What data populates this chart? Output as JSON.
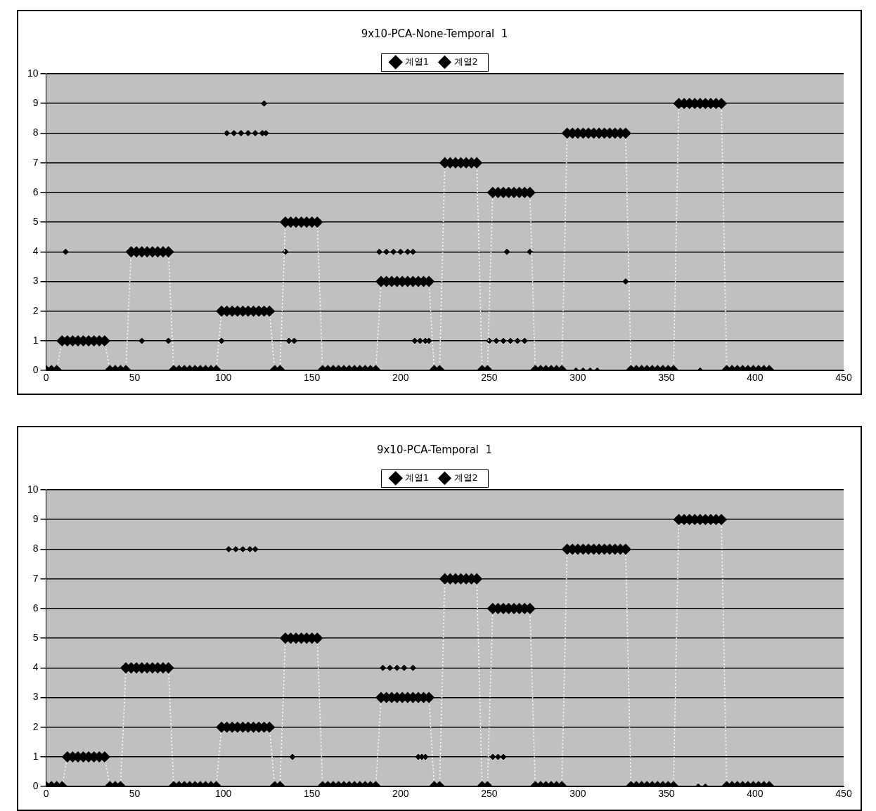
{
  "chart_data": [
    {
      "type": "line",
      "title": "9x10-PCA-None-Temporal  1",
      "x": [
        0,
        3,
        6,
        9,
        12,
        15,
        18,
        21,
        24,
        27,
        30,
        33,
        36,
        39,
        42,
        45,
        48,
        51,
        54,
        57,
        60,
        63,
        66,
        69,
        72,
        75,
        78,
        81,
        84,
        87,
        90,
        93,
        96,
        99,
        102,
        105,
        108,
        111,
        114,
        117,
        120,
        123,
        126,
        129,
        132,
        135,
        138,
        141,
        144,
        147,
        150,
        153,
        156,
        159,
        162,
        165,
        168,
        171,
        174,
        177,
        180,
        183,
        186,
        189,
        192,
        195,
        198,
        201,
        204,
        207,
        210,
        213,
        216,
        219,
        222,
        225,
        228,
        231,
        234,
        237,
        240,
        243,
        246,
        249,
        252,
        255,
        258,
        261,
        264,
        267,
        270,
        273,
        276,
        279,
        282,
        285,
        288,
        291,
        294,
        297,
        300,
        303,
        306,
        309,
        312,
        315,
        318,
        321,
        324,
        327,
        330,
        333,
        336,
        339,
        342,
        345,
        348,
        351,
        354,
        357,
        360,
        363,
        366,
        369,
        372,
        375,
        378,
        381,
        384,
        387,
        390,
        393,
        396,
        399,
        402,
        405,
        408
      ],
      "series": [
        {
          "name": "계열1",
          "type": "line",
          "color": "#000000",
          "line_style": "dotted",
          "values": [
            0,
            0,
            0,
            1,
            1,
            1,
            1,
            1,
            1,
            1,
            1,
            1,
            0,
            0,
            0,
            0,
            4,
            4,
            4,
            4,
            4,
            4,
            4,
            4,
            0,
            0,
            0,
            0,
            0,
            0,
            0,
            0,
            0,
            2,
            2,
            2,
            2,
            2,
            2,
            2,
            2,
            2,
            2,
            0,
            0,
            5,
            5,
            5,
            5,
            5,
            5,
            5,
            0,
            0,
            0,
            0,
            0,
            0,
            0,
            0,
            0,
            0,
            0,
            3,
            3,
            3,
            3,
            3,
            3,
            3,
            3,
            3,
            3,
            0,
            0,
            7,
            7,
            7,
            7,
            7,
            7,
            7,
            0,
            0,
            6,
            6,
            6,
            6,
            6,
            6,
            6,
            6,
            0,
            0,
            0,
            0,
            0,
            0,
            8,
            8,
            8,
            8,
            8,
            8,
            8,
            8,
            8,
            8,
            8,
            8,
            0,
            0,
            0,
            0,
            0,
            0,
            0,
            0,
            0,
            9,
            9,
            9,
            9,
            9,
            9,
            9,
            9,
            9,
            0,
            0,
            0,
            0,
            0,
            0,
            0,
            0,
            0
          ]
        },
        {
          "name": "계열2",
          "type": "scatter",
          "color": "#000000",
          "x": [
            11,
            54,
            69,
            99,
            102,
            106,
            110,
            114,
            118,
            122,
            124,
            123,
            135,
            137,
            140,
            188,
            192,
            196,
            200,
            204,
            207,
            208,
            211,
            214,
            216,
            250,
            254,
            258,
            262,
            266,
            270,
            260,
            273,
            299,
            303,
            307,
            311,
            327,
            369
          ],
          "values": [
            4,
            1,
            1,
            1,
            8,
            8,
            8,
            8,
            8,
            8,
            8,
            9,
            4,
            1,
            1,
            4,
            4,
            4,
            4,
            4,
            4,
            1,
            1,
            1,
            1,
            1,
            1,
            1,
            1,
            1,
            1,
            4,
            4,
            0,
            0,
            0,
            0,
            3,
            0
          ]
        }
      ],
      "xlim": [
        0,
        450
      ],
      "xticks": [
        0,
        50,
        100,
        150,
        200,
        250,
        300,
        350,
        400,
        450
      ],
      "ylim": [
        0,
        10
      ],
      "yticks": [
        0,
        1,
        2,
        3,
        4,
        5,
        6,
        7,
        8,
        9,
        10
      ],
      "grid": "y",
      "legend": "top",
      "marker": "diamond"
    },
    {
      "type": "line",
      "title": "9x10-PCA-Temporal  1",
      "x": [
        0,
        3,
        6,
        9,
        12,
        15,
        18,
        21,
        24,
        27,
        30,
        33,
        36,
        39,
        42,
        45,
        48,
        51,
        54,
        57,
        60,
        63,
        66,
        69,
        72,
        75,
        78,
        81,
        84,
        87,
        90,
        93,
        96,
        99,
        102,
        105,
        108,
        111,
        114,
        117,
        120,
        123,
        126,
        129,
        132,
        135,
        138,
        141,
        144,
        147,
        150,
        153,
        156,
        159,
        162,
        165,
        168,
        171,
        174,
        177,
        180,
        183,
        186,
        189,
        192,
        195,
        198,
        201,
        204,
        207,
        210,
        213,
        216,
        219,
        222,
        225,
        228,
        231,
        234,
        237,
        240,
        243,
        246,
        249,
        252,
        255,
        258,
        261,
        264,
        267,
        270,
        273,
        276,
        279,
        282,
        285,
        288,
        291,
        294,
        297,
        300,
        303,
        306,
        309,
        312,
        315,
        318,
        321,
        324,
        327,
        330,
        333,
        336,
        339,
        342,
        345,
        348,
        351,
        354,
        357,
        360,
        363,
        366,
        369,
        372,
        375,
        378,
        381,
        384,
        387,
        390,
        393,
        396,
        399,
        402,
        405,
        408
      ],
      "series": [
        {
          "name": "계열1",
          "type": "line",
          "color": "#000000",
          "line_style": "dotted",
          "values": [
            0,
            0,
            0,
            0,
            1,
            1,
            1,
            1,
            1,
            1,
            1,
            1,
            0,
            0,
            0,
            4,
            4,
            4,
            4,
            4,
            4,
            4,
            4,
            4,
            0,
            0,
            0,
            0,
            0,
            0,
            0,
            0,
            0,
            2,
            2,
            2,
            2,
            2,
            2,
            2,
            2,
            2,
            2,
            0,
            0,
            5,
            5,
            5,
            5,
            5,
            5,
            5,
            0,
            0,
            0,
            0,
            0,
            0,
            0,
            0,
            0,
            0,
            0,
            3,
            3,
            3,
            3,
            3,
            3,
            3,
            3,
            3,
            3,
            0,
            0,
            7,
            7,
            7,
            7,
            7,
            7,
            7,
            0,
            0,
            6,
            6,
            6,
            6,
            6,
            6,
            6,
            6,
            0,
            0,
            0,
            0,
            0,
            0,
            8,
            8,
            8,
            8,
            8,
            8,
            8,
            8,
            8,
            8,
            8,
            8,
            0,
            0,
            0,
            0,
            0,
            0,
            0,
            0,
            0,
            9,
            9,
            9,
            9,
            9,
            9,
            9,
            9,
            9,
            0,
            0,
            0,
            0,
            0,
            0,
            0,
            0,
            0
          ]
        },
        {
          "name": "계열2",
          "type": "scatter",
          "color": "#000000",
          "x": [
            103,
            107,
            111,
            115,
            118,
            139,
            190,
            194,
            198,
            202,
            207,
            210,
            212,
            214,
            252,
            255,
            258,
            368,
            372
          ],
          "values": [
            8,
            8,
            8,
            8,
            8,
            1,
            4,
            4,
            4,
            4,
            4,
            1,
            1,
            1,
            1,
            1,
            1,
            0,
            0
          ]
        }
      ],
      "xlim": [
        0,
        450
      ],
      "xticks": [
        0,
        50,
        100,
        150,
        200,
        250,
        300,
        350,
        400,
        450
      ],
      "ylim": [
        0,
        10
      ],
      "yticks": [
        0,
        1,
        2,
        3,
        4,
        5,
        6,
        7,
        8,
        9,
        10
      ],
      "grid": "y",
      "legend": "top",
      "marker": "diamond"
    }
  ]
}
